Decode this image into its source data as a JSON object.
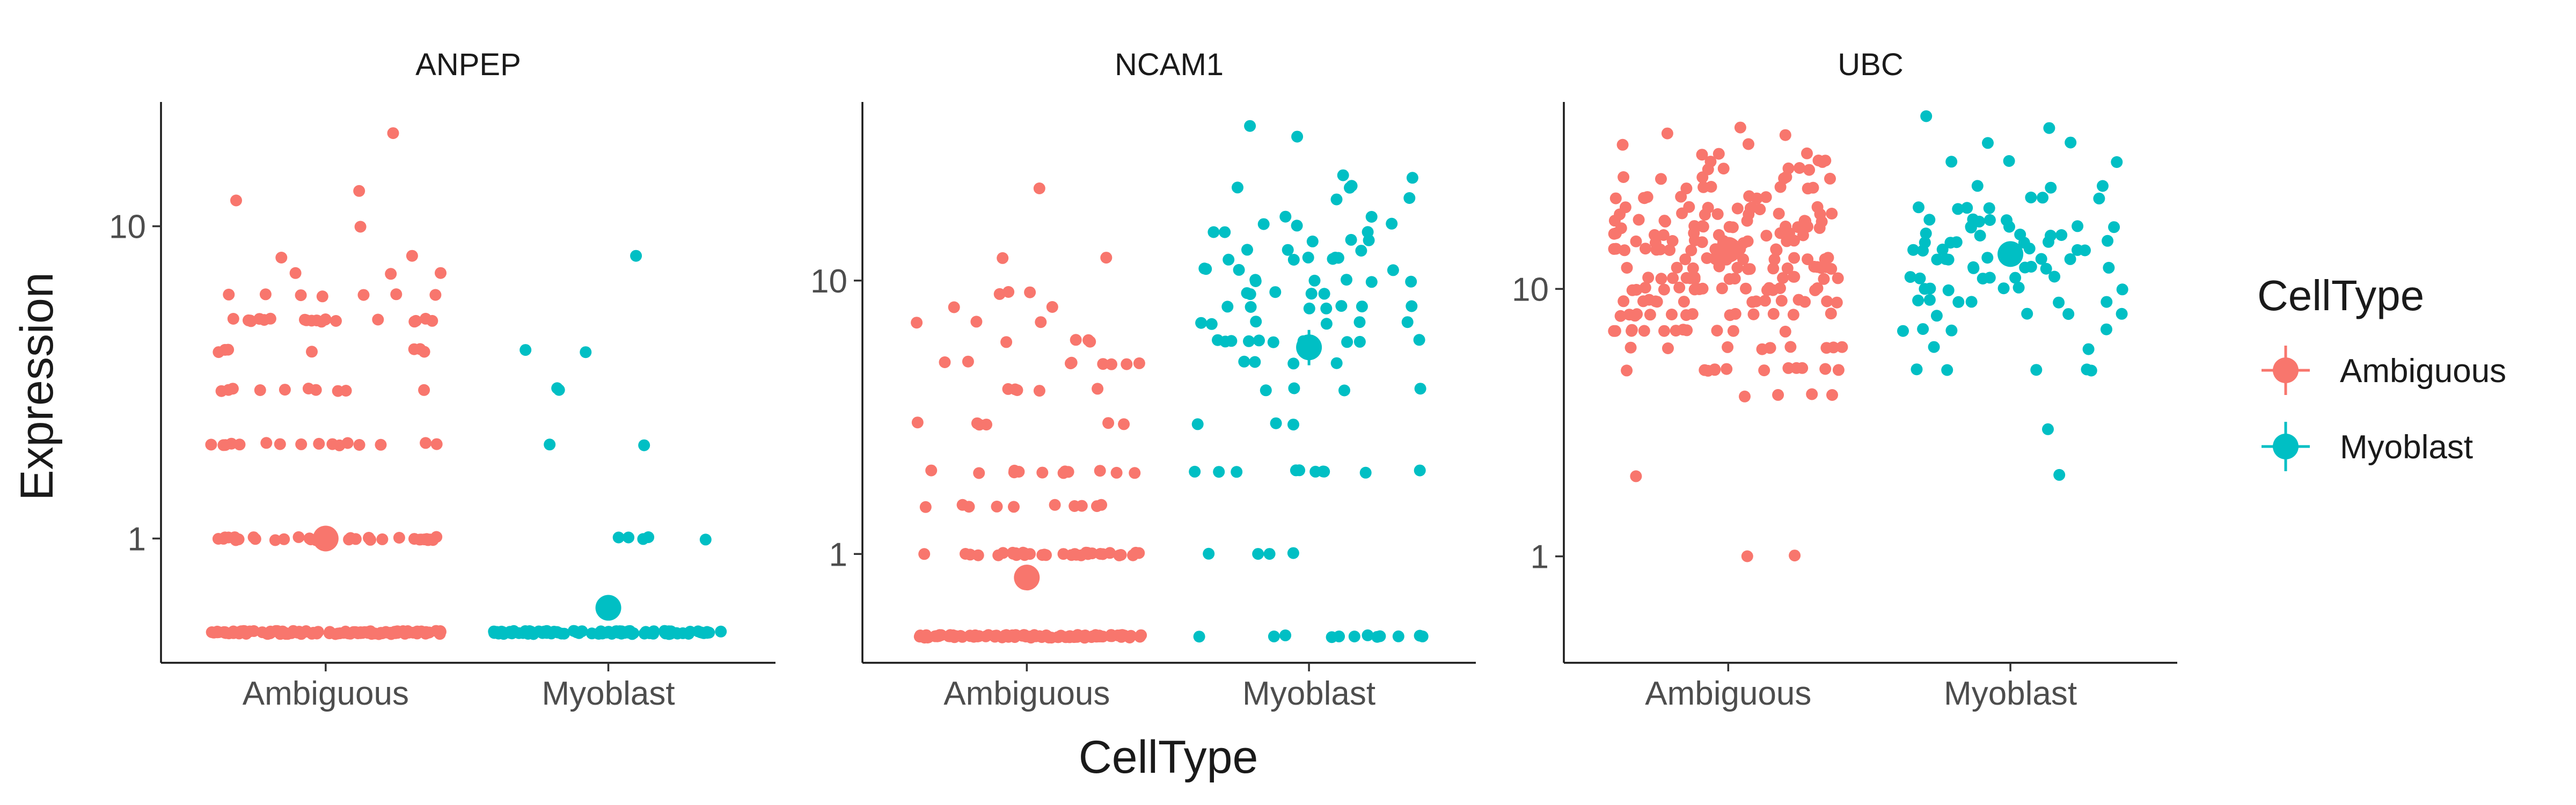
{
  "chart_data": {
    "type": "scatter",
    "xlabel": "CellType",
    "ylabel": "Expression",
    "y_scale": "log10",
    "ylim_by_panel": {
      "ANPEP": [
        0.4,
        25
      ],
      "NCAM1": [
        0.4,
        45
      ],
      "UBC": [
        0.4,
        50
      ]
    },
    "categories": [
      "Ambiguous",
      "Myoblast"
    ],
    "y_ticks": [
      {
        "value": 1,
        "label": "1"
      },
      {
        "value": 10,
        "label": "10"
      }
    ],
    "legend": {
      "title": "CellType",
      "position": "right",
      "entries": [
        {
          "label": "Ambiguous",
          "color": "#F8766D"
        },
        {
          "label": "Myoblast",
          "color": "#00BFC4"
        }
      ]
    },
    "grid": false,
    "panels": [
      {
        "title": "ANPEP",
        "series": [
          {
            "category": "Ambiguous",
            "point_counts": [
              [
                0.5,
                110
              ],
              [
                1,
                36
              ],
              [
                2,
                16
              ],
              [
                3,
                10
              ],
              [
                4,
                7
              ],
              [
                5,
                20
              ],
              [
                6,
                7
              ],
              [
                7,
                3
              ],
              [
                8,
                2
              ],
              [
                10,
                1
              ],
              [
                12,
                1
              ],
              [
                13,
                1
              ],
              [
                20,
                1
              ]
            ],
            "mean": 1.0,
            "error": [
              0.92,
              1.08
            ]
          },
          {
            "category": "Myoblast",
            "point_counts": [
              [
                0.5,
                96
              ],
              [
                1,
                5
              ],
              [
                2,
                2
              ],
              [
                3,
                2
              ],
              [
                4,
                2
              ],
              [
                8,
                1
              ]
            ],
            "mean": 0.6,
            "error": [
              0.56,
              0.65
            ]
          }
        ]
      },
      {
        "title": "NCAM1",
        "series": [
          {
            "category": "Ambiguous",
            "point_counts": [
              [
                0.5,
                110
              ],
              [
                1,
                34
              ],
              [
                1.5,
                10
              ],
              [
                2,
                12
              ],
              [
                3,
                6
              ],
              [
                4,
                5
              ],
              [
                5,
                8
              ],
              [
                6,
                4
              ],
              [
                7,
                3
              ],
              [
                8,
                2
              ],
              [
                9,
                3
              ],
              [
                12,
                2
              ],
              [
                22,
                1
              ]
            ],
            "mean": 0.82,
            "error": [
              0.76,
              0.9
            ]
          },
          {
            "category": "Myoblast",
            "point_counts": [
              [
                0.5,
                12
              ],
              [
                1,
                4
              ],
              [
                2,
                10
              ],
              [
                3,
                3
              ],
              [
                4,
                4
              ],
              [
                5,
                4
              ],
              [
                6,
                10
              ],
              [
                7,
                6
              ],
              [
                8,
                7
              ],
              [
                9,
                5
              ],
              [
                10,
                6
              ],
              [
                11,
                4
              ],
              [
                12,
                6
              ],
              [
                13,
                3
              ],
              [
                14,
                3
              ],
              [
                15,
                3
              ],
              [
                16,
                3
              ],
              [
                17,
                2
              ],
              [
                20,
                2
              ],
              [
                22,
                3
              ],
              [
                24,
                2
              ],
              [
                34,
                1
              ],
              [
                37,
                1
              ]
            ],
            "mean": 5.7,
            "error": [
              4.9,
              6.6
            ]
          }
        ]
      },
      {
        "title": "UBC",
        "series": [
          {
            "category": "Ambiguous",
            "point_counts": [
              [
                1,
                2
              ],
              [
                2,
                1
              ],
              [
                4,
                4
              ],
              [
                5,
                12
              ],
              [
                6,
                10
              ],
              [
                7,
                12
              ],
              [
                8,
                14
              ],
              [
                9,
                14
              ],
              [
                10,
                16
              ],
              [
                11,
                14
              ],
              [
                12,
                14
              ],
              [
                13,
                12
              ],
              [
                14,
                12
              ],
              [
                15,
                12
              ],
              [
                16,
                10
              ],
              [
                17,
                10
              ],
              [
                18,
                8
              ],
              [
                19,
                8
              ],
              [
                20,
                8
              ],
              [
                22,
                8
              ],
              [
                24,
                6
              ],
              [
                26,
                6
              ],
              [
                28,
                5
              ],
              [
                30,
                4
              ],
              [
                32,
                3
              ],
              [
                35,
                2
              ],
              [
                38,
                2
              ],
              [
                40,
                1
              ]
            ],
            "mean": 14.0,
            "error": [
              13.0,
              15.0
            ]
          },
          {
            "category": "Myoblast",
            "point_counts": [
              [
                2,
                1
              ],
              [
                3,
                1
              ],
              [
                5,
                5
              ],
              [
                6,
                2
              ],
              [
                7,
                4
              ],
              [
                8,
                4
              ],
              [
                9,
                6
              ],
              [
                10,
                6
              ],
              [
                11,
                6
              ],
              [
                12,
                6
              ],
              [
                13,
                6
              ],
              [
                14,
                6
              ],
              [
                15,
                6
              ],
              [
                16,
                5
              ],
              [
                17,
                5
              ],
              [
                18,
                5
              ],
              [
                20,
                4
              ],
              [
                22,
                3
              ],
              [
                24,
                3
              ],
              [
                30,
                3
              ],
              [
                35,
                2
              ],
              [
                40,
                1
              ],
              [
                44,
                1
              ]
            ],
            "mean": 13.5,
            "error": [
              12.3,
              14.8
            ]
          }
        ]
      }
    ]
  }
}
